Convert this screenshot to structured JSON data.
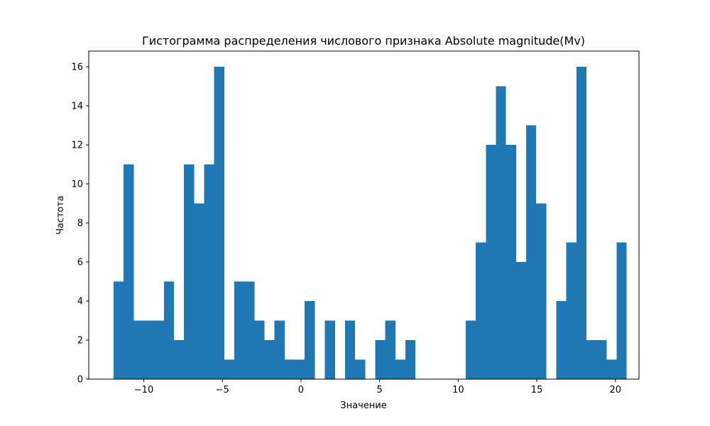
{
  "chart_data": {
    "type": "bar",
    "title": "Гистограмма распределения числового признака Absolute magnitude(Mv)",
    "xlabel": "Значение",
    "ylabel": "Частота",
    "bin_start": -11.92,
    "bin_width": 0.64,
    "counts": [
      5,
      11,
      3,
      3,
      3,
      5,
      2,
      11,
      9,
      11,
      16,
      1,
      5,
      5,
      3,
      2,
      3,
      1,
      1,
      4,
      0,
      3,
      0,
      3,
      1,
      0,
      2,
      3,
      1,
      2,
      0,
      0,
      0,
      0,
      0,
      3,
      7,
      12,
      15,
      12,
      6,
      13,
      9,
      0,
      4,
      7,
      16,
      2,
      2,
      1,
      7
    ],
    "xlim": [
      -13.5,
      21.5
    ],
    "ylim": [
      0,
      16.8
    ],
    "xticks": [
      -10,
      -5,
      0,
      5,
      10,
      15,
      20
    ],
    "xtick_labels": [
      "−10",
      "−5",
      "0",
      "5",
      "10",
      "15",
      "20"
    ],
    "yticks": [
      0,
      2,
      4,
      6,
      8,
      10,
      12,
      14,
      16
    ],
    "ytick_labels": [
      "0",
      "2",
      "4",
      "6",
      "8",
      "10",
      "12",
      "14",
      "16"
    ],
    "color": "#1f77b4",
    "grid": false
  }
}
